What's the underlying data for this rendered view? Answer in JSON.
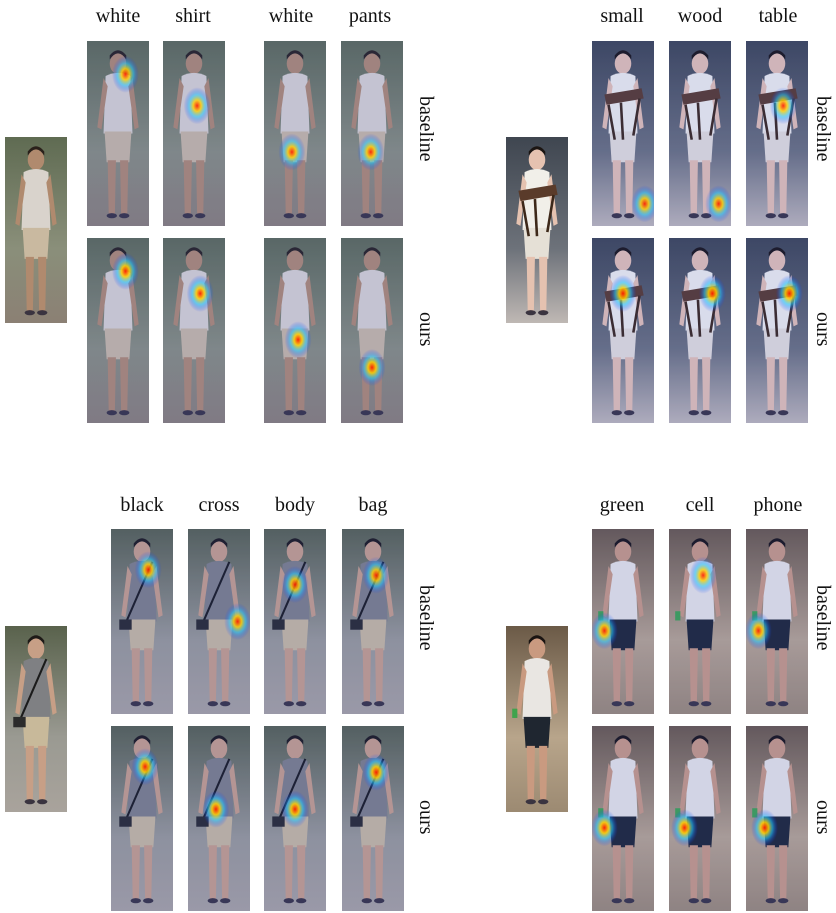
{
  "labels": {
    "baseline": "baseline",
    "ours": "ours"
  },
  "panels": [
    {
      "words": [
        "white",
        "shirt",
        "white",
        "pants"
      ],
      "scene": "white-shirt-white-pants",
      "baseline_heat": [
        [
          0.62,
          0.18,
          0.9
        ],
        [
          0.55,
          0.35,
          0.9
        ],
        [
          0.45,
          0.6,
          0.9
        ],
        [
          0.48,
          0.6,
          0.9
        ]
      ],
      "ours_heat": [
        [
          0.62,
          0.18,
          0.95
        ],
        [
          0.6,
          0.3,
          0.95
        ],
        [
          0.55,
          0.55,
          0.95
        ],
        [
          0.5,
          0.7,
          0.95
        ]
      ]
    },
    {
      "words": [
        "small",
        "wood",
        "table"
      ],
      "scene": "small-wood-table",
      "baseline_heat": [
        [
          0.85,
          0.88,
          0.9
        ],
        [
          0.8,
          0.88,
          0.9
        ],
        [
          0.6,
          0.35,
          0.9
        ]
      ],
      "ours_heat": [
        [
          0.5,
          0.3,
          0.95
        ],
        [
          0.7,
          0.3,
          0.95
        ],
        [
          0.7,
          0.3,
          0.95
        ]
      ]
    },
    {
      "words": [
        "black",
        "cross",
        "body",
        "bag"
      ],
      "scene": "black-cross-body-bag",
      "baseline_heat": [
        [
          0.6,
          0.22,
          0.9
        ],
        [
          0.8,
          0.5,
          0.9
        ],
        [
          0.5,
          0.3,
          0.9
        ],
        [
          0.55,
          0.25,
          0.9
        ]
      ],
      "ours_heat": [
        [
          0.55,
          0.22,
          0.95
        ],
        [
          0.45,
          0.45,
          0.95
        ],
        [
          0.5,
          0.45,
          0.95
        ],
        [
          0.55,
          0.25,
          0.95
        ]
      ]
    },
    {
      "words": [
        "green",
        "cell",
        "phone"
      ],
      "scene": "green-cell-phone",
      "baseline_heat": [
        [
          0.2,
          0.55,
          0.9
        ],
        [
          0.55,
          0.25,
          0.9
        ],
        [
          0.2,
          0.55,
          0.9
        ]
      ],
      "ours_heat": [
        [
          0.2,
          0.55,
          0.95
        ],
        [
          0.25,
          0.55,
          0.95
        ],
        [
          0.3,
          0.55,
          0.95
        ]
      ]
    }
  ]
}
